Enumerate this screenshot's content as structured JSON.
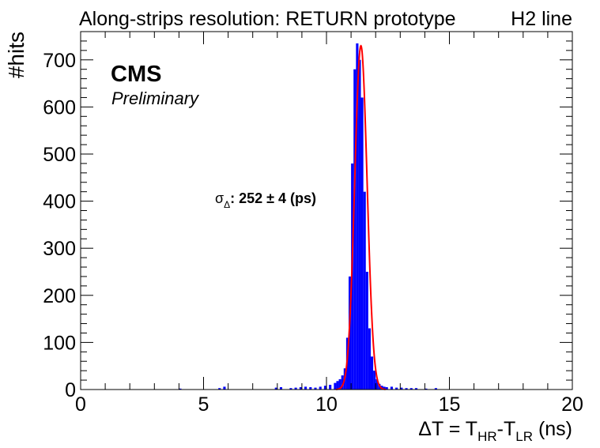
{
  "chart_data": {
    "type": "bar",
    "title": "Along-strips resolution: RETURN prototype",
    "title_right": "H2 line",
    "xlabel": {
      "delta": "ΔT = T",
      "sub1": "HR",
      "dash": "-T",
      "sub2": "LR",
      "unit": " (ns)"
    },
    "ylabel": "#hits",
    "xlim": [
      0,
      20
    ],
    "ylim": [
      0,
      760
    ],
    "xticks": [
      0,
      5,
      10,
      15,
      20
    ],
    "yticks": [
      0,
      100,
      200,
      300,
      400,
      500,
      600,
      700
    ],
    "grid": false,
    "experiment_label": "CMS",
    "status_label": "Preliminary",
    "fit_annotation": {
      "symbol": "σ",
      "sub": "Δ",
      "text": ": 252 ± 4 (ps)"
    },
    "histogram": {
      "name": "hits",
      "color": "#0000ff",
      "bin_width": 0.1,
      "x": [
        4.0,
        5.6,
        5.8,
        7.9,
        8.1,
        8.5,
        8.7,
        8.9,
        9.1,
        9.3,
        9.5,
        9.7,
        9.9,
        10.1,
        10.3,
        10.4,
        10.5,
        10.6,
        10.7,
        10.8,
        10.9,
        11.0,
        11.1,
        11.2,
        11.3,
        11.4,
        11.5,
        11.6,
        11.7,
        11.8,
        11.9,
        12.0,
        12.1,
        12.2,
        12.3,
        12.4,
        12.6,
        12.8,
        13.0,
        13.2,
        13.4,
        13.6,
        14.0,
        14.4
      ],
      "values": [
        2,
        3,
        6,
        4,
        5,
        3,
        4,
        5,
        6,
        5,
        4,
        6,
        8,
        10,
        14,
        18,
        22,
        30,
        45,
        110,
        240,
        480,
        680,
        735,
        700,
        620,
        420,
        250,
        130,
        70,
        40,
        22,
        12,
        8,
        6,
        5,
        6,
        4,
        4,
        3,
        3,
        3,
        2,
        3
      ]
    },
    "fit": {
      "name": "gaussian fit",
      "color": "#ff0000",
      "mean": 11.4,
      "sigma": 0.252,
      "amplitude": 730
    }
  }
}
